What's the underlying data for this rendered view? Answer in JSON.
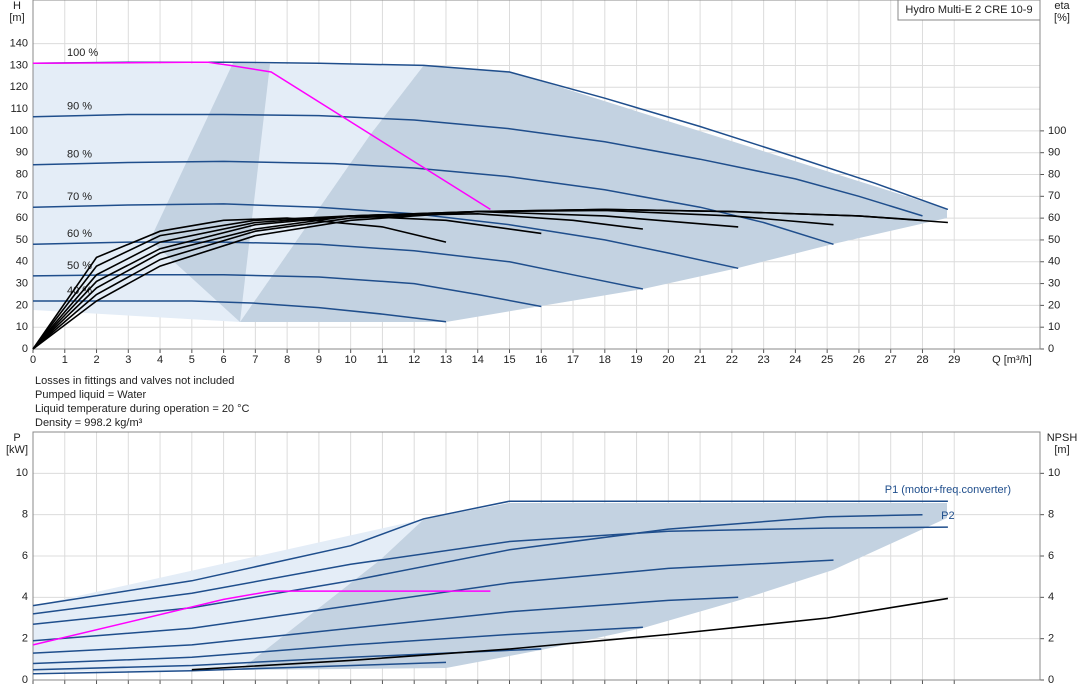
{
  "chart_data": [
    {
      "type": "line",
      "title": "Hydro Multi-E 2 CRE 10-9",
      "y_label": "H",
      "y_unit": "[m]",
      "y2_label": "eta",
      "y2_unit": "[%]",
      "x_label": "Q [m³/h]",
      "xlim": [
        0,
        31.7
      ],
      "xticks": [
        0,
        1,
        2,
        3,
        4,
        5,
        6,
        7,
        8,
        9,
        10,
        11,
        12,
        13,
        14,
        15,
        16,
        17,
        18,
        19,
        20,
        21,
        22,
        23,
        24,
        25,
        26,
        27,
        28,
        29
      ],
      "ylim": [
        0,
        160
      ],
      "yticks": [
        0,
        10,
        20,
        30,
        40,
        50,
        60,
        70,
        80,
        90,
        100,
        110,
        120,
        130,
        140
      ],
      "y2lim": [
        0,
        160
      ],
      "y2ticks": [
        0,
        10,
        20,
        30,
        40,
        50,
        60,
        70,
        80,
        90,
        100
      ],
      "grid": true,
      "x_tick_labels": true,
      "notes": [
        "Losses in fittings and valves not included",
        "Pumped liquid = Water",
        "Liquid temperature during operation = 20 °C",
        "Density = 998.2 kg/m³"
      ],
      "series": [
        {
          "name": "100 %",
          "color": "#1f4e8c",
          "x": [
            0,
            3,
            6,
            9,
            12.3,
            15,
            18,
            21,
            24,
            26.5,
            28.8
          ],
          "values": [
            131,
            131.5,
            131.5,
            131,
            130,
            127,
            115,
            102,
            88,
            76,
            64
          ]
        },
        {
          "name": "90 %",
          "color": "#1f4e8c",
          "x": [
            0,
            3,
            6,
            9,
            12,
            15,
            18,
            21,
            24,
            26,
            28
          ],
          "values": [
            106.5,
            107.5,
            107.5,
            107,
            105,
            101,
            95,
            87,
            78,
            70,
            61
          ]
        },
        {
          "name": "80 %",
          "color": "#1f4e8c",
          "x": [
            0,
            3,
            6,
            9.5,
            12,
            15,
            18,
            21,
            23,
            25.2
          ],
          "values": [
            84.5,
            85.5,
            86,
            85,
            83,
            79,
            73,
            65,
            58,
            48
          ]
        },
        {
          "name": "70 %",
          "color": "#1f4e8c",
          "x": [
            0,
            3,
            6,
            9,
            12,
            15,
            18,
            20,
            22.2
          ],
          "values": [
            65,
            66,
            66.5,
            65,
            62,
            57,
            50,
            44,
            37
          ]
        },
        {
          "name": "60 %",
          "color": "#1f4e8c",
          "x": [
            0,
            3,
            6,
            9,
            12,
            15,
            17,
            19.2
          ],
          "values": [
            48,
            49,
            49,
            48,
            45,
            40,
            34,
            27.5
          ]
        },
        {
          "name": "50 %",
          "color": "#1f4e8c",
          "x": [
            0,
            3,
            6,
            9,
            12,
            14,
            16
          ],
          "values": [
            33.5,
            34,
            34,
            33,
            30,
            25,
            19.5
          ]
        },
        {
          "name": "40 %",
          "color": "#1f4e8c",
          "x": [
            0,
            2,
            5,
            7,
            9,
            11,
            13
          ],
          "values": [
            22,
            22,
            22,
            21,
            19,
            16,
            12.5
          ]
        },
        {
          "color": "#ff00ff",
          "x": [
            0,
            5.5,
            6.2,
            7.5,
            14.4
          ],
          "values": [
            131,
            131.5,
            130,
            127,
            64
          ]
        },
        {
          "color": "#000000",
          "axis": "y2",
          "x": [
            0,
            2,
            4,
            7,
            10,
            14,
            18,
            22,
            26,
            28.8
          ],
          "values": [
            0,
            22,
            38,
            52,
            59,
            63,
            64,
            63,
            61,
            58
          ]
        },
        {
          "color": "#000000",
          "axis": "y2",
          "x": [
            0,
            2,
            4,
            7,
            10,
            14,
            18,
            22,
            26,
            28
          ],
          "values": [
            0,
            25,
            41,
            54,
            60,
            63,
            64,
            63,
            61,
            59
          ]
        },
        {
          "color": "#000000",
          "axis": "y2",
          "x": [
            0,
            2,
            4,
            7,
            10,
            14,
            18,
            22,
            25.2
          ],
          "values": [
            0,
            28,
            44,
            55,
            61,
            63,
            63.5,
            61,
            57
          ]
        },
        {
          "color": "#000000",
          "axis": "y2",
          "x": [
            0,
            2,
            4,
            7,
            10,
            14,
            18,
            22.2
          ],
          "values": [
            0,
            31,
            46,
            57,
            61,
            63,
            61,
            56
          ]
        },
        {
          "color": "#000000",
          "axis": "y2",
          "x": [
            0,
            2,
            4,
            7,
            10,
            14,
            17,
            19.2
          ],
          "values": [
            0,
            34,
            49,
            58,
            61,
            62,
            59,
            55
          ]
        },
        {
          "color": "#000000",
          "axis": "y2",
          "x": [
            0,
            2,
            4,
            7,
            10,
            13,
            16
          ],
          "values": [
            0,
            38,
            52,
            59,
            61,
            59,
            53
          ]
        },
        {
          "color": "#000000",
          "axis": "y2",
          "x": [
            0,
            2,
            4,
            6,
            8,
            11,
            13
          ],
          "values": [
            0,
            42,
            54,
            59,
            60,
            56,
            49
          ]
        }
      ]
    },
    {
      "type": "line",
      "y_label": "P",
      "y_unit": "[kW]",
      "y2_label": "NPSH",
      "y2_unit": "[m]",
      "xlim": [
        0,
        31.7
      ],
      "xticks": [
        0,
        1,
        2,
        3,
        4,
        5,
        6,
        7,
        8,
        9,
        10,
        11,
        12,
        13,
        14,
        15,
        16,
        17,
        18,
        19,
        20,
        21,
        22,
        23,
        24,
        25,
        26,
        27,
        28,
        29
      ],
      "ylim": [
        0,
        12
      ],
      "yticks": [
        0,
        2,
        4,
        6,
        8,
        10
      ],
      "y2lim": [
        0,
        12
      ],
      "y2ticks": [
        0,
        2,
        4,
        6,
        8,
        10
      ],
      "grid": true,
      "x_tick_labels": false,
      "series": [
        {
          "name": "P1 (motor+freq.converter)",
          "color": "#1f4e8c",
          "x": [
            0,
            5,
            10,
            12.3,
            15,
            20,
            25,
            28.8
          ],
          "values": [
            3.6,
            4.8,
            6.5,
            7.8,
            8.65,
            8.65,
            8.65,
            8.65
          ]
        },
        {
          "name": "P2",
          "color": "#1f4e8c",
          "x": [
            0,
            5,
            10,
            15,
            20,
            25,
            28.8
          ],
          "values": [
            3.2,
            4.2,
            5.6,
            6.7,
            7.2,
            7.35,
            7.4
          ]
        },
        {
          "color": "#1f4e8c",
          "x": [
            0,
            5,
            10,
            15,
            20,
            25,
            28
          ],
          "values": [
            2.7,
            3.5,
            4.8,
            6.3,
            7.3,
            7.9,
            8.0
          ]
        },
        {
          "color": "#1f4e8c",
          "x": [
            0,
            5,
            10,
            15,
            20,
            25.2
          ],
          "values": [
            1.9,
            2.5,
            3.6,
            4.7,
            5.4,
            5.8
          ]
        },
        {
          "color": "#1f4e8c",
          "x": [
            0,
            5,
            10,
            15,
            20,
            22.2
          ],
          "values": [
            1.3,
            1.7,
            2.5,
            3.3,
            3.85,
            4.0
          ]
        },
        {
          "color": "#1f4e8c",
          "x": [
            0,
            5,
            10,
            15,
            19.2
          ],
          "values": [
            0.8,
            1.1,
            1.7,
            2.2,
            2.55
          ]
        },
        {
          "color": "#1f4e8c",
          "x": [
            0,
            5,
            10,
            13,
            16
          ],
          "values": [
            0.5,
            0.7,
            1.1,
            1.3,
            1.5
          ]
        },
        {
          "color": "#1f4e8c",
          "x": [
            0,
            5,
            8,
            11,
            13
          ],
          "values": [
            0.3,
            0.45,
            0.6,
            0.75,
            0.85
          ]
        },
        {
          "color": "#ff00ff",
          "x": [
            0,
            6,
            7.5,
            14.4
          ],
          "values": [
            1.7,
            3.9,
            4.3,
            4.3
          ]
        },
        {
          "color": "#000000",
          "axis": "y2",
          "x": [
            5,
            10,
            15,
            20,
            25,
            28.8
          ],
          "values": [
            0.5,
            0.95,
            1.5,
            2.2,
            3.0,
            3.95
          ]
        }
      ]
    }
  ]
}
